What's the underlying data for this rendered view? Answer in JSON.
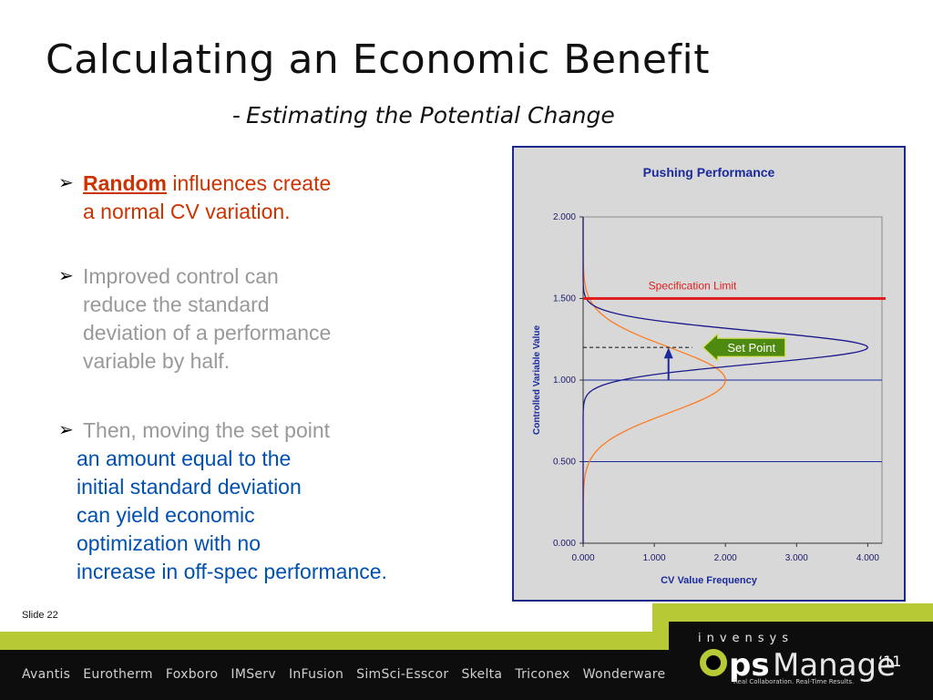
{
  "slide": {
    "title": "Calculating an Economic Benefit",
    "subtitle_dash": "-",
    "subtitle": "Estimating the Potential Change",
    "slide_number": "Slide 22"
  },
  "bullets": {
    "b1_keyword": "Random",
    "b1_rest": " influences create",
    "b1_line2": "a normal CV variation.",
    "b2_lines": [
      "Improved control can",
      "reduce the standard",
      "deviation of a performance",
      "variable by half."
    ],
    "b3_head": "Then, moving the set point",
    "b3_lines": [
      "an amount equal to the",
      "initial standard deviation",
      "can yield economic",
      "optimization with no",
      "increase in off-spec performance."
    ]
  },
  "chart_data": {
    "type": "line",
    "title": "Pushing Performance",
    "xlabel": "CV Value Frequency",
    "ylabel": "Controlled Variable Value",
    "xlim": [
      0,
      4.2
    ],
    "ylim": [
      0,
      2
    ],
    "x_ticks": [
      "0.000",
      "1.000",
      "2.000",
      "3.000",
      "4.000"
    ],
    "y_ticks": [
      "0.000",
      "0.500",
      "1.000",
      "1.500",
      "2.000"
    ],
    "series": [
      {
        "color": "#ff7a1a",
        "peak_frequency": 2.0,
        "mean": 1.0,
        "std": 0.2
      },
      {
        "color": "#1a1a8c",
        "peak_frequency": 4.0,
        "mean": 1.2,
        "std": 0.1
      }
    ],
    "specification_limit": {
      "label": "Specification Limit",
      "y": 1.5,
      "color": "#e02020"
    },
    "set_point": {
      "label": "Set Point",
      "y": 1.2,
      "from_y": 1.0,
      "at_x": 1.2
    }
  },
  "footer": {
    "brands": [
      "Avantis",
      "Eurotherm",
      "Foxboro",
      "IMServ",
      "InFusion",
      "SimSci-Esscor",
      "Skelta",
      "Triconex",
      "Wonderware"
    ],
    "company": "invensys",
    "product_ps": "ps",
    "product_manage": "Manage",
    "product_year": "‘11",
    "tagline": "Real Collaboration. Real-Time Results.",
    "accent_color": "#b7c934"
  }
}
